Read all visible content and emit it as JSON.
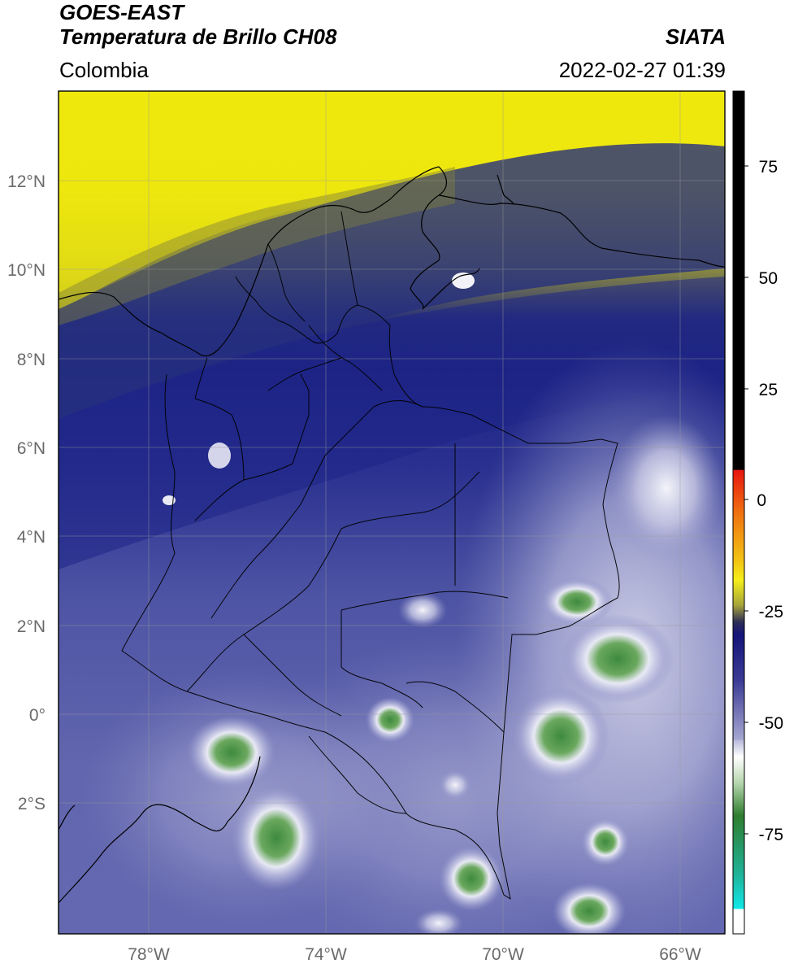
{
  "header": {
    "satellite": "GOES-EAST",
    "product": "Temperatura de Brillo CH08",
    "region": "Colombia",
    "brand": "SIATA",
    "datetime": "2022-02-27 01:39"
  },
  "axes": {
    "lat_labels": [
      "12°N",
      "10°N",
      "8°N",
      "6°N",
      "4°N",
      "2°N",
      "0°",
      "2°S"
    ],
    "lon_labels": [
      "78°W",
      "74°W",
      "70°W",
      "66°W"
    ]
  },
  "colorbar": {
    "labels": [
      "75",
      "50",
      "25",
      "0",
      "-25",
      "-50",
      "-75"
    ],
    "colors": {
      "black": "#000000",
      "red": "#e8150f",
      "orange": "#f08c12",
      "yellow": "#f5ee1a",
      "olive": "#8c8c32",
      "navy": "#18187e",
      "blue": "#3c3c96",
      "lavender": "#a7a8d2",
      "white": "#ffffff",
      "green": "#2f7d2f",
      "teal": "#1fb39a",
      "cyan": "#10e8e8"
    }
  },
  "map": {
    "colors": {
      "yellow_high": "#f0ea0a",
      "olive": "#a6a62c",
      "navy": "#1a1e80",
      "indigo": "#2c3188",
      "slate": "#5a5fa8",
      "lavender": "#8f92c6",
      "cloud_white": "#e8e9f4",
      "green_core": "#3e8a3e"
    },
    "icons": [
      "coastline-icon",
      "department-borders-icon",
      "graticule-icon"
    ]
  }
}
